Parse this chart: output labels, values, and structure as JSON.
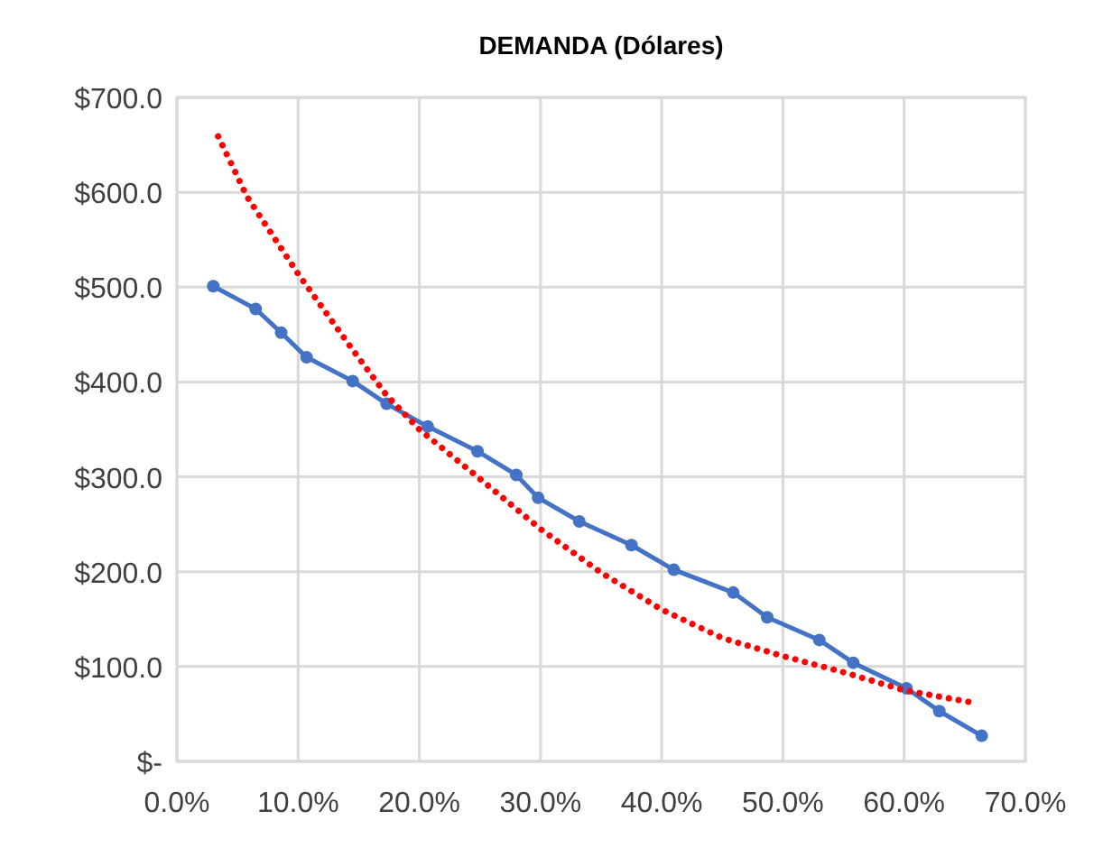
{
  "chart_data": {
    "type": "line",
    "title": "DEMANDA (Dólares)",
    "xlim": [
      0,
      70
    ],
    "ylim": [
      0,
      700
    ],
    "xticks": [
      {
        "value": 0,
        "label": "0.0%"
      },
      {
        "value": 10,
        "label": "10.0%"
      },
      {
        "value": 20,
        "label": "20.0%"
      },
      {
        "value": 30,
        "label": "30.0%"
      },
      {
        "value": 40,
        "label": "40.0%"
      },
      {
        "value": 50,
        "label": "50.0%"
      },
      {
        "value": 60,
        "label": "60.0%"
      },
      {
        "value": 70,
        "label": "70.0%"
      }
    ],
    "yticks": [
      {
        "value": 0,
        "label": "$-"
      },
      {
        "value": 100,
        "label": "$100.0"
      },
      {
        "value": 200,
        "label": "$200.0"
      },
      {
        "value": 300,
        "label": "$300.0"
      },
      {
        "value": 400,
        "label": "$400.0"
      },
      {
        "value": 500,
        "label": "$500.0"
      },
      {
        "value": 600,
        "label": "$600.0"
      },
      {
        "value": 700,
        "label": "$700.0"
      }
    ],
    "grid": true,
    "series": [
      {
        "color": "#4472c4",
        "marker": "circle",
        "line_style": "solid",
        "x": [
          3.0,
          6.5,
          8.6,
          10.7,
          14.5,
          17.3,
          20.7,
          24.8,
          28.0,
          29.8,
          33.2,
          37.5,
          41.0,
          45.9,
          48.7,
          53.0,
          55.8,
          60.2,
          62.9,
          66.4
        ],
        "values": [
          501,
          477,
          452,
          426,
          401,
          377,
          353,
          327,
          302,
          278,
          253,
          228,
          202,
          178,
          152,
          128,
          104,
          77,
          53,
          27
        ]
      },
      {
        "color": "#ff0000",
        "marker": "none",
        "line_style": "dotted",
        "x": [
          3.4,
          5.8,
          10,
          14.5,
          17.3,
          20,
          24.8,
          30,
          35,
          40,
          45,
          50,
          55,
          60,
          66.1
        ],
        "values": [
          659,
          595,
          514,
          434,
          386,
          350,
          300,
          245,
          199,
          160,
          130,
          111,
          94,
          75,
          61
        ]
      }
    ]
  }
}
